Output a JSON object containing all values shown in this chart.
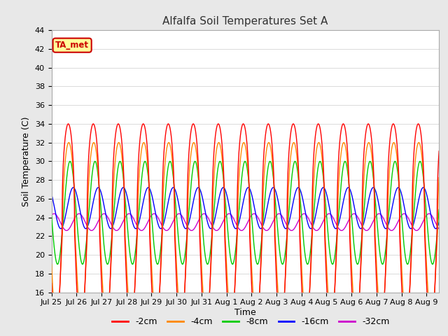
{
  "title": "Alfalfa Soil Temperatures Set A",
  "xlabel": "Time",
  "ylabel": "Soil Temperature (C)",
  "ylim": [
    16,
    44
  ],
  "yticks": [
    16,
    18,
    20,
    22,
    24,
    26,
    28,
    30,
    32,
    34,
    36,
    38,
    40,
    42,
    44
  ],
  "n_days": 15.5,
  "legend_labels": [
    "-2cm",
    "-4cm",
    "-8cm",
    "-16cm",
    "-32cm"
  ],
  "legend_colors": [
    "#ff0000",
    "#ff8800",
    "#00cc00",
    "#0000ff",
    "#cc00cc"
  ],
  "annotation_text": "TA_met",
  "annotation_color": "#cc0000",
  "annotation_bg": "#ffff99",
  "background_color": "#e8e8e8",
  "plot_bg_color": "#ffffff",
  "grid_color": "#cccccc",
  "xtick_labels": [
    "Jul 25",
    "Jul 26",
    "Jul 27",
    "Jul 28",
    "Jul 29",
    "Jul 30",
    "Jul 31",
    "Aug 1",
    "Aug 2",
    "Aug 3",
    "Aug 4",
    "Aug 5",
    "Aug 6",
    "Aug 7",
    "Aug 8",
    "Aug 9"
  ],
  "base_2cm": 22.5,
  "amp_2cm": 11.5,
  "phase_2cm": 0.42,
  "base_4cm": 22.5,
  "amp_4cm": 9.5,
  "phase_4cm": 0.44,
  "base_8cm": 24.5,
  "amp_8cm": 5.5,
  "phase_8cm": 0.49,
  "base_16cm": 25.0,
  "amp_16cm": 2.2,
  "phase_16cm": 0.62,
  "base_32cm": 23.5,
  "amp_32cm": 0.9,
  "phase_32cm": 0.85,
  "sharpness_2cm": 2.5,
  "sharpness_4cm": 2.0,
  "title_fontsize": 11,
  "label_fontsize": 9,
  "tick_fontsize": 8,
  "legend_fontsize": 9,
  "linewidth": 1.0
}
